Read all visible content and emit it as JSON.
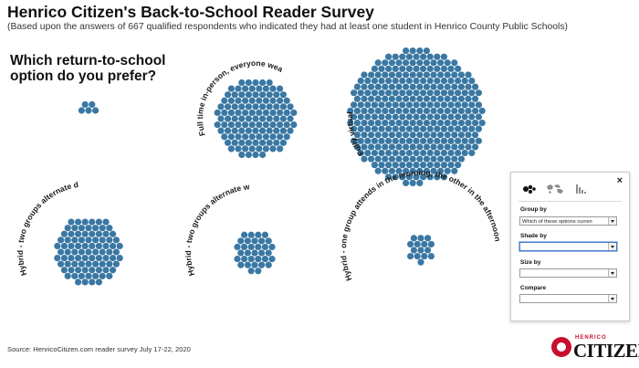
{
  "header": {
    "title": "Henrico Citizen's Back-to-School Reader Survey",
    "subtitle": "(Based upon the answers of 667 qualified respondents who indicated they had at least one student in Henrico County Public Schools)"
  },
  "question": {
    "line1": "Which return-to-school",
    "line2": "option do you prefer?"
  },
  "chart_data": {
    "type": "scatter",
    "subtype": "packed-dot clusters",
    "dot_color": "#3a78a3",
    "groups": [
      {
        "label": "",
        "value": 5
      },
      {
        "label": "Full time in-person, everyone wearing masks and social distancing",
        "value": 120
      },
      {
        "label": "Fully virtual",
        "value": 347
      },
      {
        "label": "Hybrid - two groups alternate days",
        "value": 87
      },
      {
        "label": "Hybrid - two groups alternate weeks",
        "value": 33
      },
      {
        "label": "Hybrid - one group attends in the morning, the other in the afternoon",
        "value": 15
      }
    ]
  },
  "controls": {
    "mode_icons": [
      "cluster-icon",
      "map-icon",
      "histogram-icon"
    ],
    "group_by": {
      "label": "Group by",
      "value": "Which of these options curren"
    },
    "shade_by": {
      "label": "Shade by",
      "value": ""
    },
    "size_by": {
      "label": "Size by",
      "value": ""
    },
    "compare": {
      "label": "Compare",
      "value": ""
    },
    "close": "×"
  },
  "footer": {
    "source": "Source: HenricoCitizen.com reader survey July 17-22, 2020",
    "logo_top": "HENRICO",
    "logo_text": "CITIZEN",
    "brand_color": "#c8102e"
  }
}
